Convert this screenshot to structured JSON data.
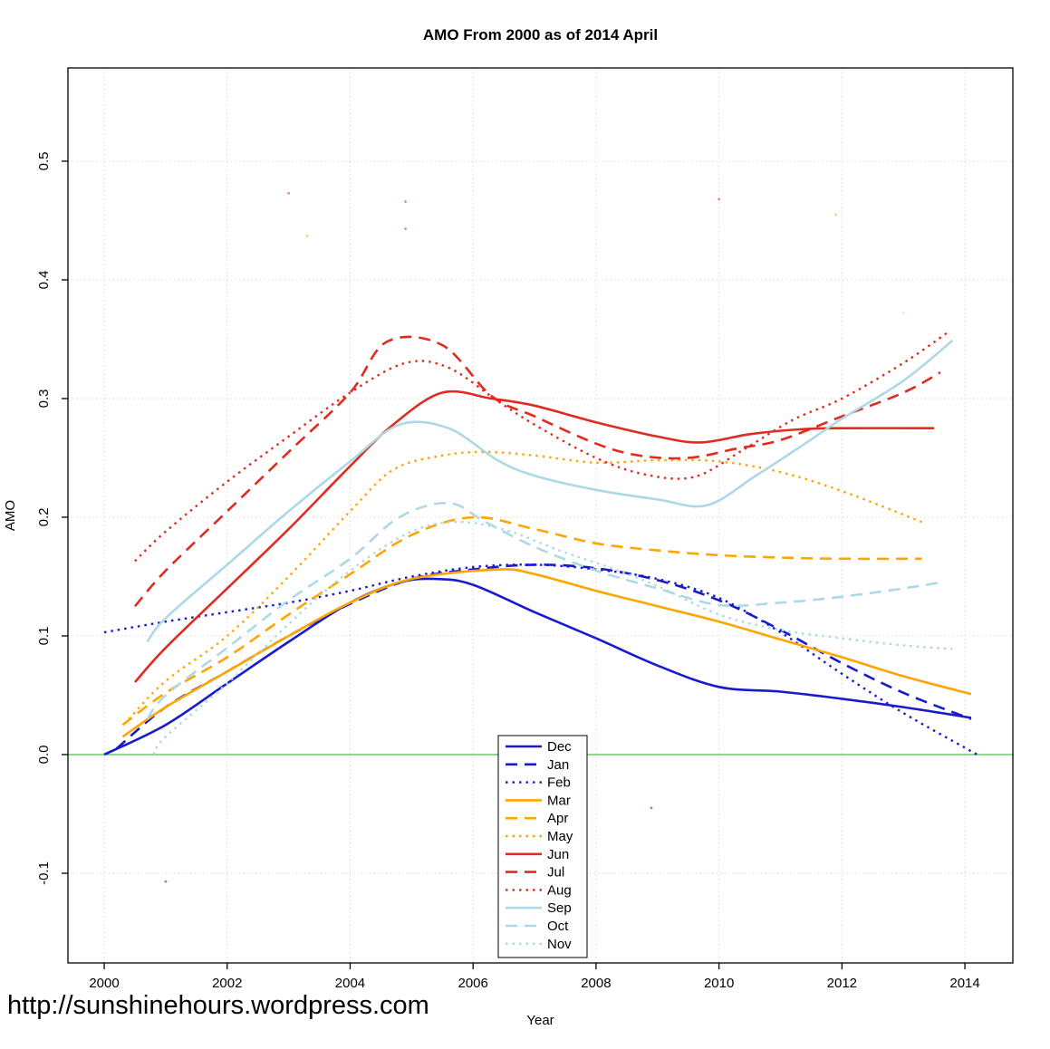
{
  "watermark": "http://sunshinehours.wordpress.com",
  "chart_data": {
    "type": "line",
    "title": "AMO From 2000 as of 2014 April",
    "xlabel": "Year",
    "ylabel": "AMO",
    "xlim": [
      1999.41,
      2014.78
    ],
    "ylim": [
      -0.1756,
      0.5786
    ],
    "x_ticks": [
      2000,
      2002,
      2004,
      2006,
      2008,
      2010,
      2012,
      2014
    ],
    "y_ticks": [
      -0.1,
      0.0,
      0.1,
      0.2,
      0.3,
      0.4,
      0.5
    ],
    "grid": true,
    "zero_line": {
      "y": 0.0,
      "color": "#4dbd4d"
    },
    "legend_position": "bottom-center",
    "colors": {
      "blue": "#1a1acd",
      "orange": "#ffa500",
      "red": "#e02b20",
      "lightblue": "#add8e6",
      "grid": "#d9d9d9",
      "frame": "#000000"
    },
    "series": [
      {
        "name": "Dec",
        "color": "blue",
        "style": "solid",
        "points": [
          [
            2000.0,
            0.0
          ],
          [
            2001,
            0.025
          ],
          [
            2002,
            0.06
          ],
          [
            2003,
            0.095
          ],
          [
            2004,
            0.128
          ],
          [
            2004.8,
            0.145
          ],
          [
            2005.4,
            0.148
          ],
          [
            2006,
            0.143
          ],
          [
            2007,
            0.12
          ],
          [
            2008,
            0.098
          ],
          [
            2009,
            0.075
          ],
          [
            2010,
            0.057
          ],
          [
            2011,
            0.053
          ],
          [
            2012,
            0.047
          ],
          [
            2013,
            0.04
          ],
          [
            2014.1,
            0.031
          ]
        ]
      },
      {
        "name": "Jan",
        "color": "blue",
        "style": "dashed",
        "points": [
          [
            2000.2,
            0.005
          ],
          [
            2001,
            0.04
          ],
          [
            2002,
            0.07
          ],
          [
            2003,
            0.1
          ],
          [
            2004,
            0.127
          ],
          [
            2005,
            0.148
          ],
          [
            2006,
            0.156
          ],
          [
            2007,
            0.16
          ],
          [
            2008,
            0.157
          ],
          [
            2009,
            0.147
          ],
          [
            2010,
            0.13
          ],
          [
            2011,
            0.105
          ],
          [
            2012,
            0.077
          ],
          [
            2013,
            0.052
          ],
          [
            2014.1,
            0.03
          ]
        ]
      },
      {
        "name": "Feb",
        "color": "blue",
        "style": "dotted",
        "points": [
          [
            2000.0,
            0.103
          ],
          [
            2001,
            0.112
          ],
          [
            2002,
            0.12
          ],
          [
            2003,
            0.128
          ],
          [
            2004,
            0.138
          ],
          [
            2005,
            0.15
          ],
          [
            2006,
            0.158
          ],
          [
            2007,
            0.16
          ],
          [
            2008,
            0.156
          ],
          [
            2009,
            0.148
          ],
          [
            2010,
            0.132
          ],
          [
            2011,
            0.103
          ],
          [
            2012,
            0.068
          ],
          [
            2013,
            0.035
          ],
          [
            2014.2,
            0.0
          ]
        ]
      },
      {
        "name": "Mar",
        "color": "orange",
        "style": "solid",
        "points": [
          [
            2000.3,
            0.015
          ],
          [
            2001,
            0.04
          ],
          [
            2002,
            0.07
          ],
          [
            2003,
            0.1
          ],
          [
            2004,
            0.128
          ],
          [
            2005,
            0.148
          ],
          [
            2006.4,
            0.156
          ],
          [
            2007,
            0.152
          ],
          [
            2008,
            0.138
          ],
          [
            2009,
            0.125
          ],
          [
            2010,
            0.112
          ],
          [
            2011,
            0.097
          ],
          [
            2012,
            0.082
          ],
          [
            2013,
            0.066
          ],
          [
            2014.1,
            0.051
          ]
        ]
      },
      {
        "name": "Apr",
        "color": "orange",
        "style": "dashed",
        "points": [
          [
            2000.3,
            0.025
          ],
          [
            2001,
            0.052
          ],
          [
            2002,
            0.082
          ],
          [
            2003,
            0.118
          ],
          [
            2004,
            0.152
          ],
          [
            2005,
            0.185
          ],
          [
            2006,
            0.2
          ],
          [
            2007,
            0.19
          ],
          [
            2008,
            0.178
          ],
          [
            2009,
            0.172
          ],
          [
            2010,
            0.168
          ],
          [
            2011,
            0.166
          ],
          [
            2012,
            0.165
          ],
          [
            2013.3,
            0.165
          ]
        ]
      },
      {
        "name": "May",
        "color": "orange",
        "style": "dotted",
        "points": [
          [
            2000.4,
            0.03
          ],
          [
            2001,
            0.062
          ],
          [
            2002,
            0.1
          ],
          [
            2003,
            0.15
          ],
          [
            2004,
            0.205
          ],
          [
            2004.7,
            0.24
          ],
          [
            2005.5,
            0.252
          ],
          [
            2006.2,
            0.255
          ],
          [
            2007,
            0.252
          ],
          [
            2008,
            0.246
          ],
          [
            2009,
            0.248
          ],
          [
            2010,
            0.247
          ],
          [
            2011,
            0.238
          ],
          [
            2012,
            0.222
          ],
          [
            2013.3,
            0.196
          ]
        ]
      },
      {
        "name": "Jun",
        "color": "red",
        "style": "solid",
        "points": [
          [
            2000.5,
            0.061
          ],
          [
            2001,
            0.09
          ],
          [
            2002,
            0.14
          ],
          [
            2003,
            0.19
          ],
          [
            2004,
            0.243
          ],
          [
            2004.7,
            0.278
          ],
          [
            2005.5,
            0.305
          ],
          [
            2006.3,
            0.3
          ],
          [
            2007,
            0.294
          ],
          [
            2008,
            0.28
          ],
          [
            2009,
            0.268
          ],
          [
            2009.7,
            0.263
          ],
          [
            2010.5,
            0.27
          ],
          [
            2011.3,
            0.274
          ],
          [
            2012,
            0.275
          ],
          [
            2013.5,
            0.275
          ]
        ]
      },
      {
        "name": "Jul",
        "color": "red",
        "style": "dashed",
        "points": [
          [
            2000.5,
            0.125
          ],
          [
            2001,
            0.155
          ],
          [
            2002,
            0.205
          ],
          [
            2003,
            0.255
          ],
          [
            2004,
            0.305
          ],
          [
            2004.6,
            0.348
          ],
          [
            2005.5,
            0.345
          ],
          [
            2006.3,
            0.302
          ],
          [
            2007,
            0.285
          ],
          [
            2008,
            0.262
          ],
          [
            2008.7,
            0.252
          ],
          [
            2009.5,
            0.25
          ],
          [
            2010.3,
            0.258
          ],
          [
            2011,
            0.265
          ],
          [
            2012,
            0.285
          ],
          [
            2013,
            0.305
          ],
          [
            2013.6,
            0.322
          ]
        ]
      },
      {
        "name": "Aug",
        "color": "red",
        "style": "dotted",
        "points": [
          [
            2000.5,
            0.163
          ],
          [
            2001,
            0.188
          ],
          [
            2002,
            0.23
          ],
          [
            2003,
            0.268
          ],
          [
            2004,
            0.305
          ],
          [
            2004.9,
            0.33
          ],
          [
            2005.6,
            0.326
          ],
          [
            2006.4,
            0.298
          ],
          [
            2007,
            0.278
          ],
          [
            2008,
            0.25
          ],
          [
            2008.8,
            0.236
          ],
          [
            2009.6,
            0.234
          ],
          [
            2010.4,
            0.257
          ],
          [
            2011.2,
            0.282
          ],
          [
            2012,
            0.3
          ],
          [
            2013,
            0.33
          ],
          [
            2013.7,
            0.355
          ]
        ]
      },
      {
        "name": "Sep",
        "color": "lightblue",
        "style": "solid",
        "points": [
          [
            2000.7,
            0.095
          ],
          [
            2001,
            0.115
          ],
          [
            2002,
            0.16
          ],
          [
            2003,
            0.205
          ],
          [
            2004,
            0.247
          ],
          [
            2004.8,
            0.278
          ],
          [
            2005.6,
            0.275
          ],
          [
            2006.4,
            0.248
          ],
          [
            2007,
            0.235
          ],
          [
            2008,
            0.223
          ],
          [
            2009,
            0.215
          ],
          [
            2009.8,
            0.21
          ],
          [
            2010.6,
            0.235
          ],
          [
            2011.4,
            0.262
          ],
          [
            2012,
            0.283
          ],
          [
            2013,
            0.315
          ],
          [
            2013.8,
            0.349
          ]
        ]
      },
      {
        "name": "Oct",
        "color": "lightblue",
        "style": "dashed",
        "points": [
          [
            2000.7,
            0.03
          ],
          [
            2001,
            0.05
          ],
          [
            2002,
            0.09
          ],
          [
            2003,
            0.13
          ],
          [
            2004,
            0.165
          ],
          [
            2004.8,
            0.2
          ],
          [
            2005.6,
            0.212
          ],
          [
            2006.2,
            0.196
          ],
          [
            2007,
            0.175
          ],
          [
            2008,
            0.155
          ],
          [
            2009,
            0.14
          ],
          [
            2010,
            0.126
          ],
          [
            2011,
            0.128
          ],
          [
            2012,
            0.133
          ],
          [
            2013,
            0.14
          ],
          [
            2013.6,
            0.145
          ]
        ]
      },
      {
        "name": "Nov",
        "color": "lightblue",
        "style": "dotted",
        "points": [
          [
            2000.8,
            0.0
          ],
          [
            2001,
            0.015
          ],
          [
            2002,
            0.06
          ],
          [
            2003,
            0.11
          ],
          [
            2004,
            0.155
          ],
          [
            2005,
            0.188
          ],
          [
            2005.8,
            0.196
          ],
          [
            2006.6,
            0.188
          ],
          [
            2007.4,
            0.172
          ],
          [
            2008.2,
            0.158
          ],
          [
            2009,
            0.142
          ],
          [
            2010,
            0.118
          ],
          [
            2011,
            0.105
          ],
          [
            2012,
            0.098
          ],
          [
            2013,
            0.092
          ],
          [
            2013.8,
            0.089
          ]
        ]
      }
    ],
    "stray_points": [
      {
        "x": 2003.0,
        "y": 0.473,
        "color": "red"
      },
      {
        "x": 2004.9,
        "y": 0.466,
        "color": "red"
      },
      {
        "x": 2004.9,
        "y": 0.443,
        "color": "red"
      },
      {
        "x": 2003.3,
        "y": 0.437,
        "color": "orange"
      },
      {
        "x": 2010.0,
        "y": 0.468,
        "color": "red"
      },
      {
        "x": 2011.9,
        "y": 0.455,
        "color": "orange"
      },
      {
        "x": 2013.0,
        "y": 0.372,
        "color": "lightblue"
      },
      {
        "x": 2001.0,
        "y": -0.107,
        "color": "blue"
      },
      {
        "x": 2008.9,
        "y": -0.045,
        "color": "blue"
      }
    ]
  }
}
